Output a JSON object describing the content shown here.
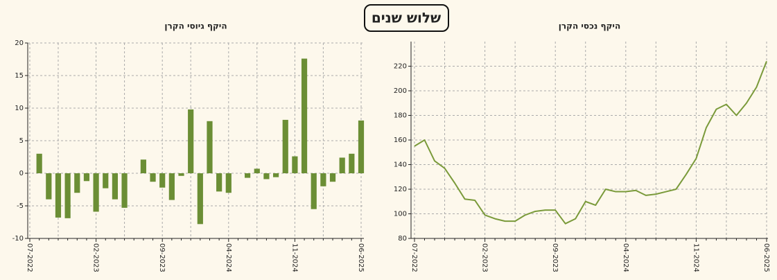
{
  "title": "שלוש שנים",
  "chart_data": [
    {
      "type": "bar",
      "title": "היקף גיוסי הקרן",
      "color": "#6b8e35",
      "grid": true,
      "categories": [
        "07-2022",
        null,
        null,
        null,
        null,
        null,
        null,
        "02-2023",
        null,
        null,
        null,
        null,
        null,
        null,
        "09-2023",
        null,
        null,
        null,
        null,
        null,
        null,
        "04-2024",
        null,
        null,
        null,
        null,
        null,
        null,
        "11-2024",
        null,
        null,
        null,
        null,
        null,
        null,
        "06-2025"
      ],
      "values": [
        null,
        3,
        -4,
        -6.8,
        -6.9,
        -3,
        -1.2,
        -5.9,
        -2.3,
        -4,
        -5.3,
        null,
        2.1,
        -1.3,
        -2.2,
        -4.1,
        -0.4,
        9.8,
        -7.8,
        8,
        -2.8,
        -3,
        null,
        -0.7,
        0.7,
        -0.9,
        -0.6,
        8.2,
        2.6,
        17.6,
        -5.5,
        -2,
        -1.3,
        2.4,
        3,
        8.1
      ],
      "ylim": [
        -10,
        20
      ],
      "yticks": [
        -10,
        -5,
        0,
        5,
        10,
        15,
        20
      ]
    },
    {
      "type": "line",
      "title": "היקף נכסי הקרן",
      "color": "#7a9a3a",
      "grid": true,
      "categories": [
        "07-2022",
        null,
        null,
        null,
        null,
        null,
        null,
        "02-2023",
        null,
        null,
        null,
        null,
        null,
        null,
        "09-2023",
        null,
        null,
        null,
        null,
        null,
        null,
        "04-2024",
        null,
        null,
        null,
        null,
        null,
        null,
        "11-2024",
        null,
        null,
        null,
        null,
        null,
        null,
        "06-2025"
      ],
      "values": [
        155,
        160,
        143,
        137,
        125,
        112,
        111,
        99,
        96,
        94,
        94,
        99,
        102,
        103,
        103,
        92,
        96,
        110,
        107,
        120,
        118,
        118,
        119,
        115,
        116,
        118,
        120,
        132,
        145,
        170,
        185,
        189,
        180,
        190,
        203,
        224
      ],
      "ylim": [
        80,
        240
      ],
      "yticks": [
        80,
        100,
        120,
        140,
        160,
        180,
        200,
        220
      ]
    }
  ]
}
